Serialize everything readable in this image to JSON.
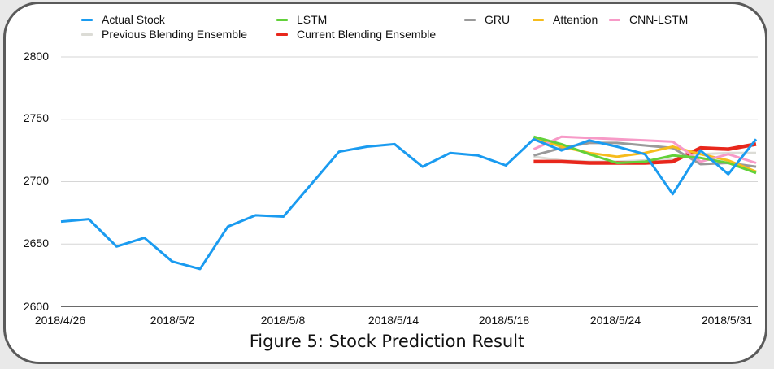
{
  "chart_data": {
    "type": "line",
    "title": "",
    "caption": "Figure 5: Stock Prediction Result",
    "xlabel": "",
    "ylabel": "",
    "ylim": [
      2600,
      2800
    ],
    "yticks": [
      "2800",
      "2750",
      "2700",
      "2650",
      "2600"
    ],
    "xtick_labels": [
      "2018/4/26",
      "2018/5/2",
      "2018/5/8",
      "2018/5/14",
      "2018/5/18",
      "2018/5/24",
      "2018/5/31"
    ],
    "grid": true,
    "legend_position": "top",
    "x_count": 26,
    "series": [
      {
        "name": "Actual Stock",
        "color": "#1a9bf0",
        "start_index": 0,
        "values": [
          2668,
          2670,
          2648,
          2655,
          2636,
          2630,
          2664,
          2673,
          2672,
          2698,
          2724,
          2728,
          2730,
          2712,
          2723,
          2721,
          2713,
          2734,
          2725,
          2733,
          2728,
          2722,
          2690,
          2725,
          2706,
          2734
        ]
      },
      {
        "name": "LSTM",
        "color": "#62d13a",
        "start_index": 17,
        "values": [
          2736,
          2730,
          2722,
          2715,
          2716,
          2721,
          2719,
          2715,
          2707
        ]
      },
      {
        "name": "GRU",
        "color": "#9a9a9a",
        "start_index": 17,
        "values": [
          2721,
          2727,
          2731,
          2731,
          2729,
          2727,
          2714,
          2715,
          2712
        ]
      },
      {
        "name": "Attention",
        "color": "#f6bc1c",
        "start_index": 17,
        "values": [
          2735,
          2728,
          2723,
          2720,
          2723,
          2728,
          2722,
          2717,
          2708
        ]
      },
      {
        "name": "CNN-LSTM",
        "color": "#f79ac7",
        "start_index": 17,
        "values": [
          2726,
          2736,
          2735,
          2734,
          2733,
          2732,
          2716,
          2722,
          2715
        ]
      },
      {
        "name": "Previous Blending Ensemble",
        "color": "#dcdcd6",
        "start_index": 17,
        "values": [
          2720,
          2717,
          2716,
          2716,
          2717,
          2718,
          2722,
          2723,
          2723
        ]
      },
      {
        "name": "Current Blending Ensemble",
        "color": "#e8271c",
        "start_index": 17,
        "values": [
          2716,
          2716,
          2715,
          2715,
          2715,
          2716,
          2727,
          2726,
          2730
        ]
      }
    ]
  },
  "legend": {
    "row1": [
      "Actual Stock",
      "LSTM",
      "GRU",
      "Attention",
      "CNN-LSTM"
    ],
    "row2": [
      "Previous Blending Ensemble",
      "Current Blending Ensemble"
    ]
  }
}
